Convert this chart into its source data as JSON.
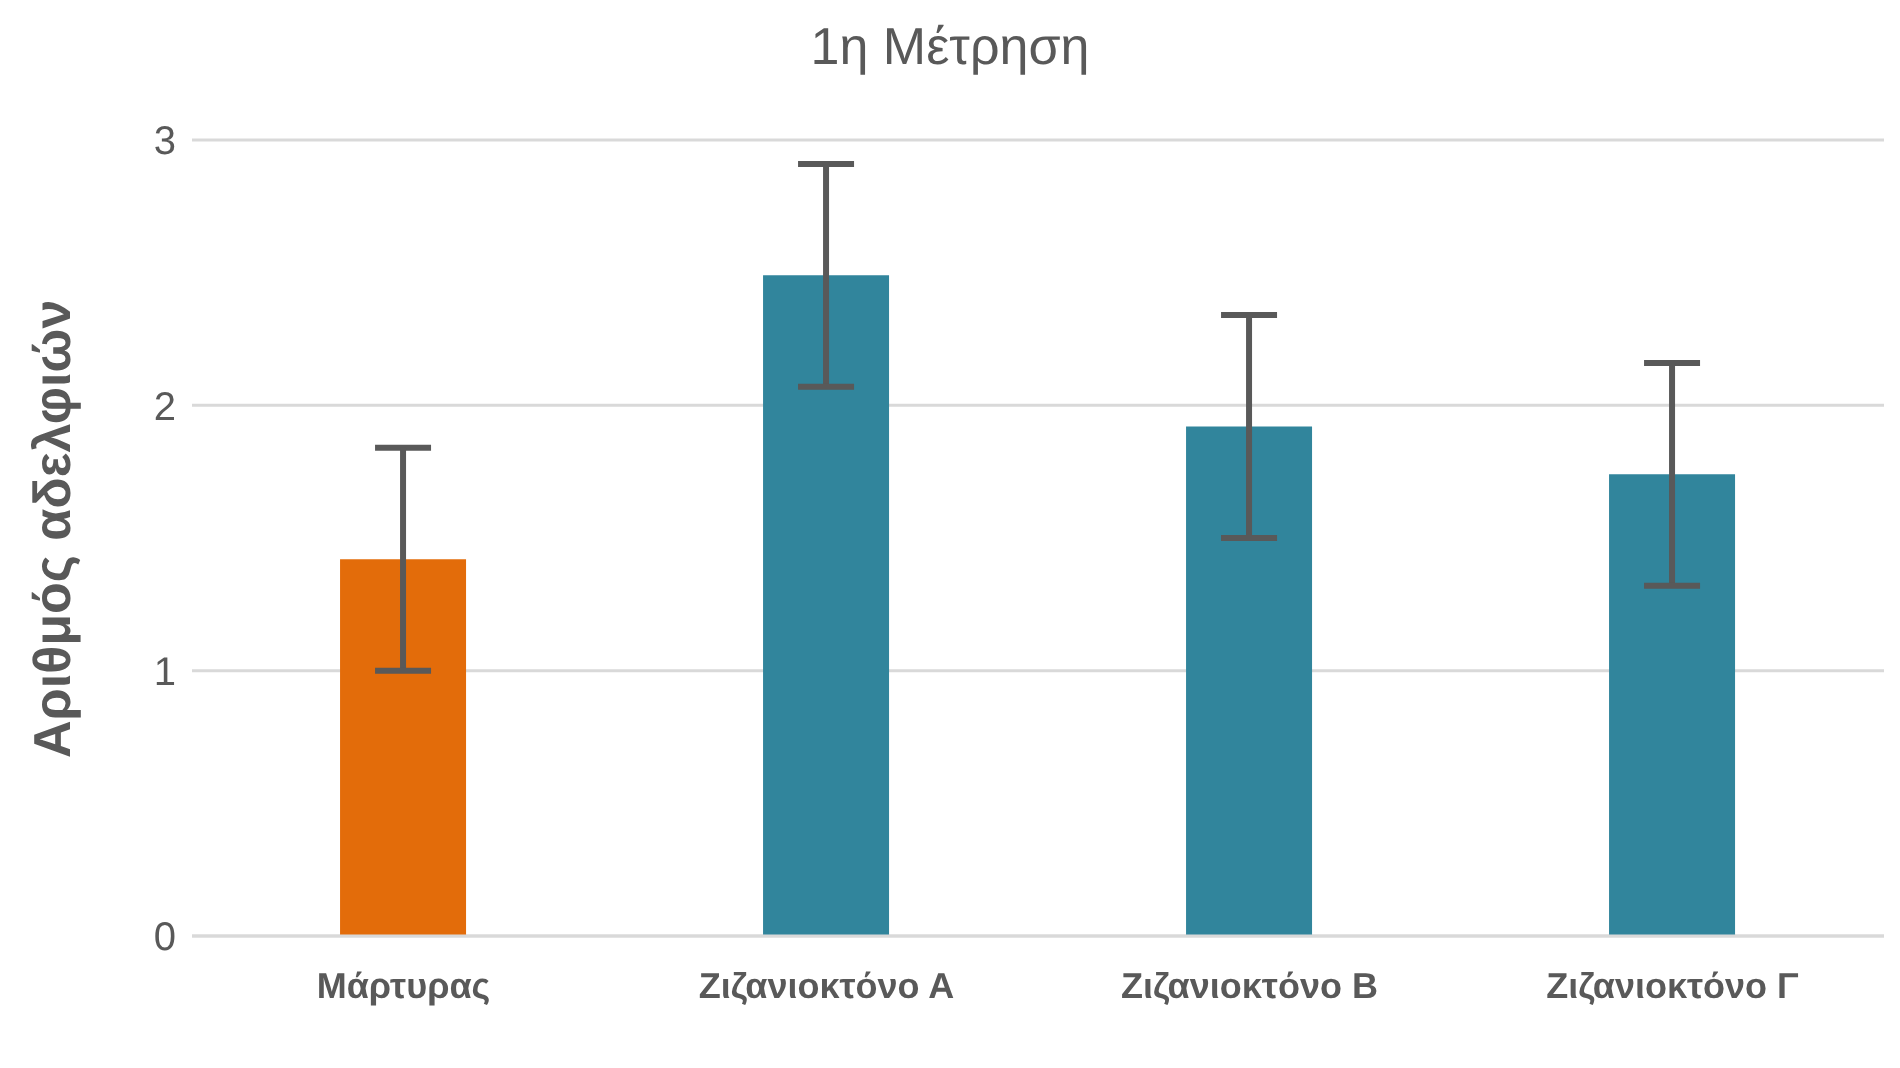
{
  "chart_data": {
    "type": "bar",
    "title": "1η Μέτρηση",
    "ylabel": "Αριθμός αδελφιών",
    "categories": [
      "Μάρτυρας",
      "Ζιζανιοκτόνο Α",
      "Ζιζανιοκτόνο Β",
      "Ζιζανιοκτόνο Γ"
    ],
    "values": [
      1.42,
      2.49,
      1.92,
      1.74
    ],
    "errors": [
      0.42,
      0.42,
      0.42,
      0.42
    ],
    "colors": [
      "#e36c0a",
      "#31859c",
      "#31859c",
      "#31859c"
    ],
    "ylim": [
      0,
      3
    ],
    "yticks": [
      0,
      1,
      2,
      3
    ],
    "grid": "y",
    "legend": false
  }
}
